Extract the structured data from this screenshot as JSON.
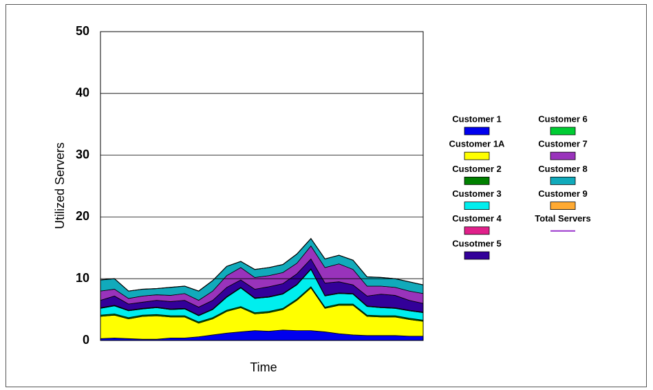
{
  "chart_data": {
    "type": "stacked_area",
    "x_label": "Time",
    "y_label": "Utilized Servers",
    "categories": [
      null,
      null,
      null,
      null,
      null,
      null,
      null,
      null,
      null,
      null,
      null,
      null,
      null,
      null,
      null,
      null,
      null,
      null,
      null,
      null,
      null,
      null,
      null,
      null
    ],
    "ylim": [
      0,
      50
    ],
    "yticks": [
      0,
      10,
      20,
      30,
      40,
      50
    ],
    "grid": true,
    "series": [
      {
        "name": "Customer 1",
        "color": "#0000ee",
        "values": [
          0.3,
          0.4,
          0.3,
          0.2,
          0.2,
          0.4,
          0.4,
          0.6,
          0.9,
          1.2,
          1.4,
          1.6,
          1.5,
          1.7,
          1.6,
          1.6,
          1.4,
          1.1,
          0.9,
          0.8,
          0.8,
          0.8,
          0.7,
          0.7
        ]
      },
      {
        "name": "Customer 1A",
        "color": "#ffff00",
        "values": [
          3.6,
          3.7,
          3.2,
          3.7,
          3.8,
          3.4,
          3.4,
          2.2,
          2.6,
          3.5,
          3.9,
          2.7,
          3.0,
          3.3,
          4.9,
          6.9,
          3.8,
          4.6,
          4.8,
          3.1,
          3.0,
          3.0,
          2.7,
          2.4
        ]
      },
      {
        "name": "Customer 2",
        "color": "#008000",
        "values": [
          0.2,
          0.2,
          0.2,
          0.2,
          0.2,
          0.2,
          0.2,
          0.2,
          0.2,
          0.2,
          0.2,
          0.2,
          0.2,
          0.2,
          0.2,
          0.2,
          0.2,
          0.2,
          0.2,
          0.2,
          0.2,
          0.2,
          0.2,
          0.2
        ]
      },
      {
        "name": "Customer 3",
        "color": "#00eeee",
        "values": [
          1.1,
          1.3,
          1.1,
          1.0,
          1.1,
          1.0,
          1.1,
          1.0,
          1.3,
          2.1,
          3.0,
          2.3,
          2.3,
          2.3,
          2.3,
          2.8,
          1.8,
          1.7,
          1.6,
          1.4,
          1.3,
          1.2,
          1.2,
          1.2
        ]
      },
      {
        "name": "Customer 4",
        "color": "#e0208a",
        "values": [
          0.1,
          0.1,
          0.1,
          0.1,
          0.1,
          0.1,
          0.1,
          0.1,
          0.1,
          0.1,
          0.1,
          0.1,
          0.1,
          0.1,
          0.1,
          0.1,
          0.1,
          0.1,
          0.1,
          0.1,
          0.1,
          0.1,
          0.1,
          0.1
        ]
      },
      {
        "name": "Cusotmer 5",
        "color": "#330099",
        "values": [
          1.2,
          1.5,
          1.0,
          1.0,
          1.1,
          1.2,
          1.3,
          1.3,
          1.4,
          1.5,
          1.2,
          1.4,
          1.6,
          1.6,
          1.7,
          1.6,
          2.0,
          1.8,
          1.4,
          1.6,
          2.1,
          2.0,
          1.6,
          1.4
        ]
      },
      {
        "name": "Customer 6",
        "color": "#00cc33",
        "values": [
          0,
          0,
          0,
          0,
          0,
          0,
          0,
          0,
          0,
          0,
          0,
          0,
          0,
          0,
          0,
          0,
          0,
          0,
          0,
          0,
          0,
          0,
          0,
          0
        ]
      },
      {
        "name": "Customer 7",
        "color": "#9933bb",
        "values": [
          1.5,
          1.1,
          0.9,
          1.0,
          0.9,
          1.0,
          1.1,
          1.1,
          1.5,
          1.9,
          2.0,
          1.9,
          1.8,
          1.8,
          1.7,
          2.1,
          2.5,
          2.9,
          2.5,
          1.6,
          1.3,
          1.3,
          1.5,
          1.6
        ]
      },
      {
        "name": "Customer 8",
        "color": "#11aabb",
        "values": [
          1.8,
          1.7,
          1.2,
          1.1,
          1.0,
          1.3,
          1.2,
          1.5,
          1.7,
          1.5,
          1.0,
          1.3,
          1.3,
          1.3,
          1.5,
          1.2,
          1.4,
          1.4,
          1.5,
          1.5,
          1.4,
          1.4,
          1.5,
          1.4
        ]
      },
      {
        "name": "Customer 9",
        "color": "#ffaa33",
        "values": [
          0,
          0,
          0,
          0,
          0,
          0,
          0,
          0,
          0,
          0,
          0,
          0,
          0,
          0,
          0,
          0,
          0,
          0,
          0,
          0,
          0,
          0,
          0,
          0
        ]
      },
      {
        "name": "Total Servers",
        "color": "#9933cc",
        "line": true,
        "values": [
          9.8,
          10.0,
          8.0,
          8.3,
          8.4,
          8.6,
          8.8,
          8.0,
          9.7,
          12.0,
          12.8,
          11.5,
          11.8,
          12.3,
          14.0,
          16.5,
          13.2,
          13.8,
          13.0,
          10.3,
          10.2,
          10.0,
          9.5,
          9.0
        ]
      }
    ]
  }
}
